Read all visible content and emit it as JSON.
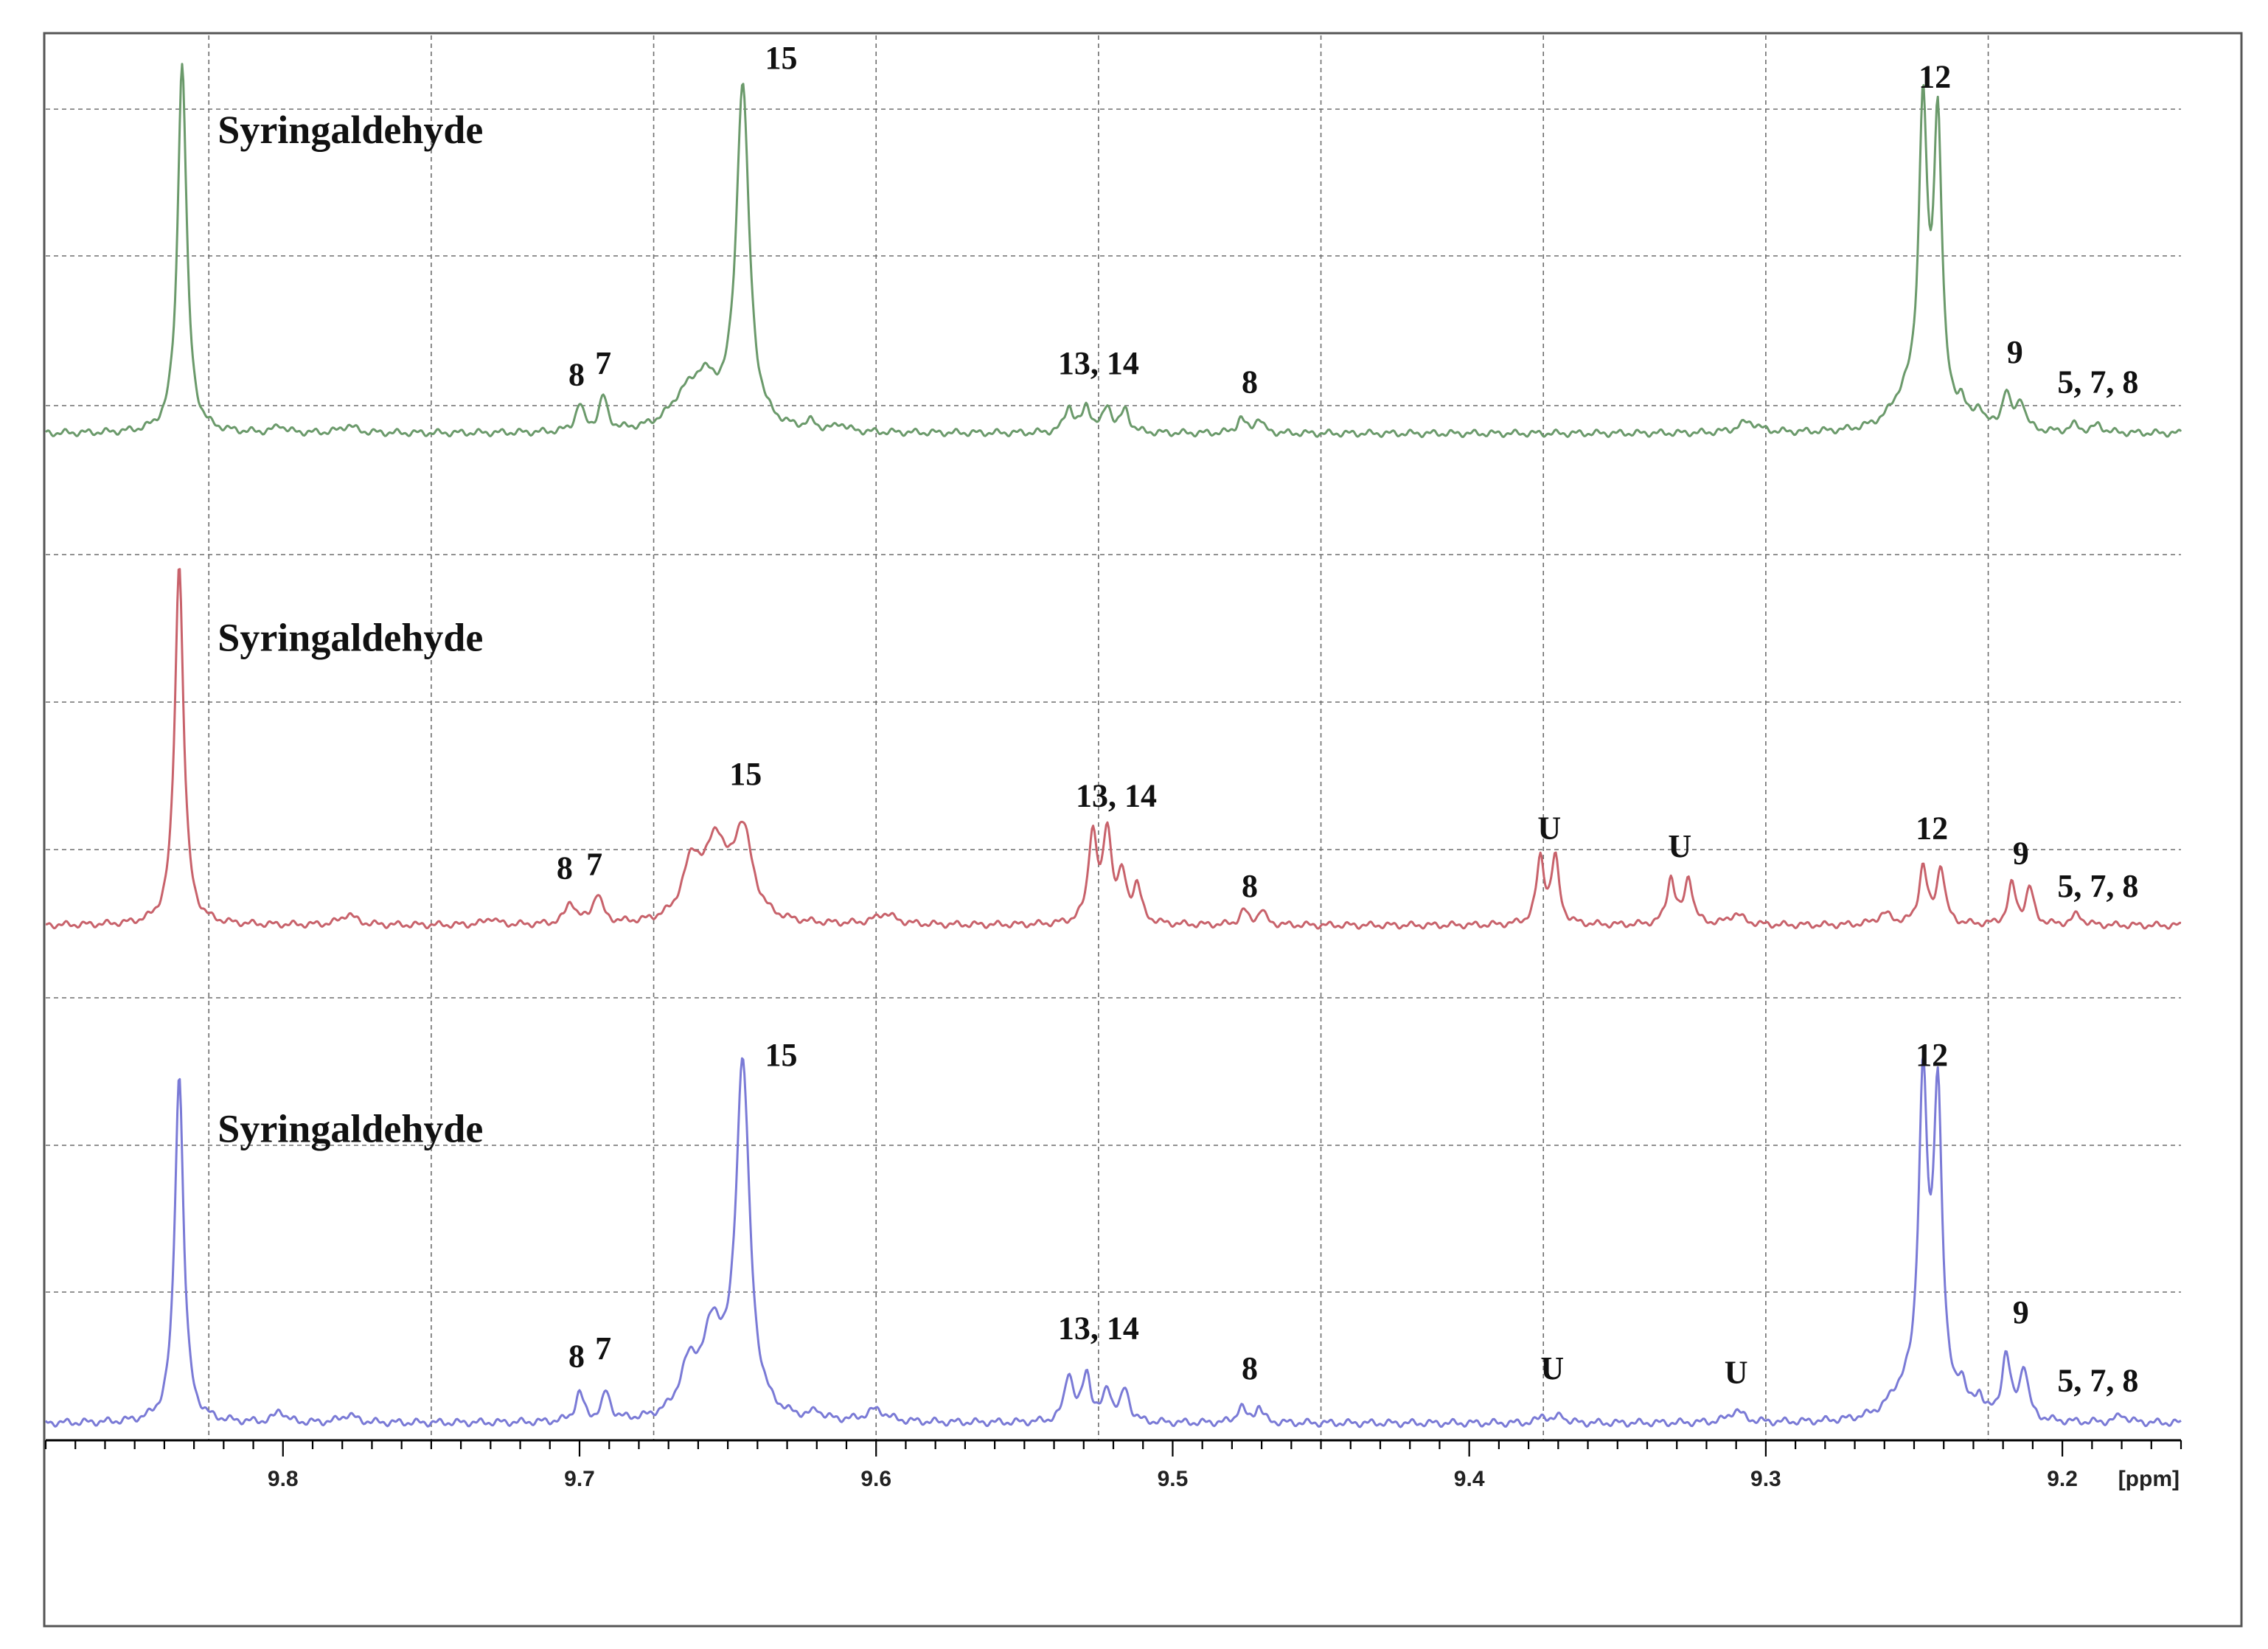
{
  "chart_data": {
    "type": "line",
    "title": "",
    "xlabel": "[ppm]",
    "ylabel": "",
    "xlim": [
      9.88,
      9.16
    ],
    "x_reversed": true,
    "grid": true,
    "x_ticks": [
      9.8,
      9.7,
      9.6,
      9.5,
      9.4,
      9.3,
      9.2
    ],
    "x_tick_labels": [
      "9.8",
      "9.7",
      "9.6",
      "9.5",
      "9.4",
      "9.3",
      "9.2"
    ],
    "gridlines_ppm": [
      9.825,
      9.75,
      9.675,
      9.6,
      9.525,
      9.45,
      9.375,
      9.3,
      9.225
    ],
    "series": [
      {
        "name": "top",
        "color": "#6b9a6b",
        "label": "Syringaldehyde",
        "peaks": [
          {
            "ppm": 9.834,
            "h": 1.0,
            "w": 0.0018
          },
          {
            "ppm": 9.645,
            "h": 0.92,
            "w": 0.0026
          },
          {
            "ppm": 9.658,
            "h": 0.12,
            "w": 0.006
          },
          {
            "ppm": 9.665,
            "h": 0.06,
            "w": 0.006
          },
          {
            "ppm": 9.7,
            "h": 0.07,
            "w": 0.0017
          },
          {
            "ppm": 9.692,
            "h": 0.09,
            "w": 0.0017
          },
          {
            "ppm": 9.535,
            "h": 0.07,
            "w": 0.0017
          },
          {
            "ppm": 9.529,
            "h": 0.07,
            "w": 0.0017
          },
          {
            "ppm": 9.522,
            "h": 0.07,
            "w": 0.0017
          },
          {
            "ppm": 9.516,
            "h": 0.06,
            "w": 0.0017
          },
          {
            "ppm": 9.477,
            "h": 0.04,
            "w": 0.0016
          },
          {
            "ppm": 9.471,
            "h": 0.04,
            "w": 0.0016
          },
          {
            "ppm": 9.247,
            "h": 0.82,
            "w": 0.0017
          },
          {
            "ppm": 9.242,
            "h": 0.8,
            "w": 0.0017
          },
          {
            "ppm": 9.253,
            "h": 0.08,
            "w": 0.006
          },
          {
            "ppm": 9.234,
            "h": 0.06,
            "w": 0.0017
          },
          {
            "ppm": 9.228,
            "h": 0.05,
            "w": 0.0017
          },
          {
            "ppm": 9.219,
            "h": 0.1,
            "w": 0.0017
          },
          {
            "ppm": 9.214,
            "h": 0.08,
            "w": 0.0017
          },
          {
            "ppm": 9.196,
            "h": 0.02,
            "w": 0.002
          },
          {
            "ppm": 9.188,
            "h": 0.02,
            "w": 0.002
          },
          {
            "ppm": 9.306,
            "h": 0.03,
            "w": 0.004
          },
          {
            "ppm": 9.801,
            "h": 0.02,
            "w": 0.002
          },
          {
            "ppm": 9.778,
            "h": 0.02,
            "w": 0.003
          },
          {
            "ppm": 9.612,
            "h": 0.02,
            "w": 0.002
          },
          {
            "ppm": 9.622,
            "h": 0.02,
            "w": 0.002
          }
        ],
        "annotations": [
          {
            "text": "Syringaldehyde",
            "ppm": 9.822,
            "rel": 0.78
          },
          {
            "text": "15",
            "ppm": 9.632,
            "rel": 0.98
          },
          {
            "text": "8",
            "ppm": 9.701,
            "rel": 0.13
          },
          {
            "text": "7",
            "ppm": 9.692,
            "rel": 0.16
          },
          {
            "text": "13, 14",
            "ppm": 9.525,
            "rel": 0.16
          },
          {
            "text": "8",
            "ppm": 9.474,
            "rel": 0.11
          },
          {
            "text": "12",
            "ppm": 9.243,
            "rel": 0.93
          },
          {
            "text": "9",
            "ppm": 9.216,
            "rel": 0.19
          },
          {
            "text": "5, 7, 8",
            "ppm": 9.188,
            "rel": 0.11
          }
        ]
      },
      {
        "name": "middle",
        "color": "#c8626b",
        "label": "Syringaldehyde",
        "peaks": [
          {
            "ppm": 9.835,
            "h": 1.0,
            "w": 0.0018
          },
          {
            "ppm": 9.645,
            "h": 0.25,
            "w": 0.004
          },
          {
            "ppm": 9.654,
            "h": 0.2,
            "w": 0.004
          },
          {
            "ppm": 9.662,
            "h": 0.16,
            "w": 0.004
          },
          {
            "ppm": 9.703,
            "h": 0.06,
            "w": 0.002
          },
          {
            "ppm": 9.694,
            "h": 0.08,
            "w": 0.002
          },
          {
            "ppm": 9.527,
            "h": 0.25,
            "w": 0.0017
          },
          {
            "ppm": 9.522,
            "h": 0.25,
            "w": 0.0017
          },
          {
            "ppm": 9.517,
            "h": 0.12,
            "w": 0.0017
          },
          {
            "ppm": 9.512,
            "h": 0.1,
            "w": 0.0017
          },
          {
            "ppm": 9.476,
            "h": 0.04,
            "w": 0.0016
          },
          {
            "ppm": 9.47,
            "h": 0.04,
            "w": 0.0016
          },
          {
            "ppm": 9.376,
            "h": 0.18,
            "w": 0.0016
          },
          {
            "ppm": 9.371,
            "h": 0.18,
            "w": 0.0016
          },
          {
            "ppm": 9.332,
            "h": 0.13,
            "w": 0.0016
          },
          {
            "ppm": 9.326,
            "h": 0.13,
            "w": 0.0016
          },
          {
            "ppm": 9.247,
            "h": 0.16,
            "w": 0.0016
          },
          {
            "ppm": 9.241,
            "h": 0.16,
            "w": 0.0016
          },
          {
            "ppm": 9.217,
            "h": 0.11,
            "w": 0.0016
          },
          {
            "ppm": 9.211,
            "h": 0.1,
            "w": 0.0016
          },
          {
            "ppm": 9.195,
            "h": 0.03,
            "w": 0.002
          },
          {
            "ppm": 9.31,
            "h": 0.03,
            "w": 0.003
          },
          {
            "ppm": 9.26,
            "h": 0.03,
            "w": 0.003
          },
          {
            "ppm": 9.597,
            "h": 0.03,
            "w": 0.004
          },
          {
            "ppm": 9.778,
            "h": 0.03,
            "w": 0.003
          },
          {
            "ppm": 9.73,
            "h": 0.02,
            "w": 0.002
          }
        ],
        "annotations": [
          {
            "text": "Syringaldehyde",
            "ppm": 9.822,
            "rel": 0.76
          },
          {
            "text": "15",
            "ppm": 9.644,
            "rel": 0.39
          },
          {
            "text": "8",
            "ppm": 9.705,
            "rel": 0.13
          },
          {
            "text": "7",
            "ppm": 9.695,
            "rel": 0.14
          },
          {
            "text": "13, 14",
            "ppm": 9.519,
            "rel": 0.33
          },
          {
            "text": "8",
            "ppm": 9.474,
            "rel": 0.08
          },
          {
            "text": "U",
            "ppm": 9.373,
            "rel": 0.24
          },
          {
            "text": "U",
            "ppm": 9.329,
            "rel": 0.19
          },
          {
            "text": "12",
            "ppm": 9.244,
            "rel": 0.24
          },
          {
            "text": "9",
            "ppm": 9.214,
            "rel": 0.17
          },
          {
            "text": "5, 7, 8",
            "ppm": 9.188,
            "rel": 0.08
          }
        ]
      },
      {
        "name": "bottom",
        "color": "#7a7ad6",
        "label": "Syringaldehyde",
        "peaks": [
          {
            "ppm": 9.835,
            "h": 0.87,
            "w": 0.0018
          },
          {
            "ppm": 9.645,
            "h": 0.88,
            "w": 0.0028
          },
          {
            "ppm": 9.655,
            "h": 0.2,
            "w": 0.004
          },
          {
            "ppm": 9.663,
            "h": 0.12,
            "w": 0.004
          },
          {
            "ppm": 9.7,
            "h": 0.07,
            "w": 0.0017
          },
          {
            "ppm": 9.691,
            "h": 0.07,
            "w": 0.0017
          },
          {
            "ppm": 9.535,
            "h": 0.12,
            "w": 0.0017
          },
          {
            "ppm": 9.529,
            "h": 0.12,
            "w": 0.0017
          },
          {
            "ppm": 9.522,
            "h": 0.08,
            "w": 0.0017
          },
          {
            "ppm": 9.516,
            "h": 0.08,
            "w": 0.0017
          },
          {
            "ppm": 9.477,
            "h": 0.04,
            "w": 0.0016
          },
          {
            "ppm": 9.471,
            "h": 0.04,
            "w": 0.0016
          },
          {
            "ppm": 9.375,
            "h": 0.02,
            "w": 0.0016
          },
          {
            "ppm": 9.369,
            "h": 0.02,
            "w": 0.0016
          },
          {
            "ppm": 9.31,
            "h": 0.03,
            "w": 0.003
          },
          {
            "ppm": 9.247,
            "h": 0.8,
            "w": 0.0018
          },
          {
            "ppm": 9.242,
            "h": 0.78,
            "w": 0.0018
          },
          {
            "ppm": 9.254,
            "h": 0.06,
            "w": 0.006
          },
          {
            "ppm": 9.234,
            "h": 0.07,
            "w": 0.0017
          },
          {
            "ppm": 9.228,
            "h": 0.05,
            "w": 0.0017
          },
          {
            "ppm": 9.219,
            "h": 0.16,
            "w": 0.0017
          },
          {
            "ppm": 9.213,
            "h": 0.13,
            "w": 0.0017
          },
          {
            "ppm": 9.18,
            "h": 0.02,
            "w": 0.002
          },
          {
            "ppm": 9.801,
            "h": 0.03,
            "w": 0.002
          },
          {
            "ppm": 9.778,
            "h": 0.02,
            "w": 0.003
          },
          {
            "ppm": 9.6,
            "h": 0.03,
            "w": 0.004
          },
          {
            "ppm": 9.62,
            "h": 0.02,
            "w": 0.002
          }
        ],
        "annotations": [
          {
            "text": "Syringaldehyde",
            "ppm": 9.822,
            "rel": 0.7
          },
          {
            "text": "15",
            "ppm": 9.632,
            "rel": 0.89
          },
          {
            "text": "8",
            "ppm": 9.701,
            "rel": 0.14
          },
          {
            "text": "7",
            "ppm": 9.692,
            "rel": 0.16
          },
          {
            "text": "13, 14",
            "ppm": 9.525,
            "rel": 0.21
          },
          {
            "text": "8",
            "ppm": 9.474,
            "rel": 0.11
          },
          {
            "text": "U",
            "ppm": 9.372,
            "rel": 0.11
          },
          {
            "text": "U",
            "ppm": 9.31,
            "rel": 0.1
          },
          {
            "text": "12",
            "ppm": 9.244,
            "rel": 0.89
          },
          {
            "text": "9",
            "ppm": 9.214,
            "rel": 0.25
          },
          {
            "text": "5, 7, 8",
            "ppm": 9.188,
            "rel": 0.08
          }
        ]
      }
    ]
  }
}
